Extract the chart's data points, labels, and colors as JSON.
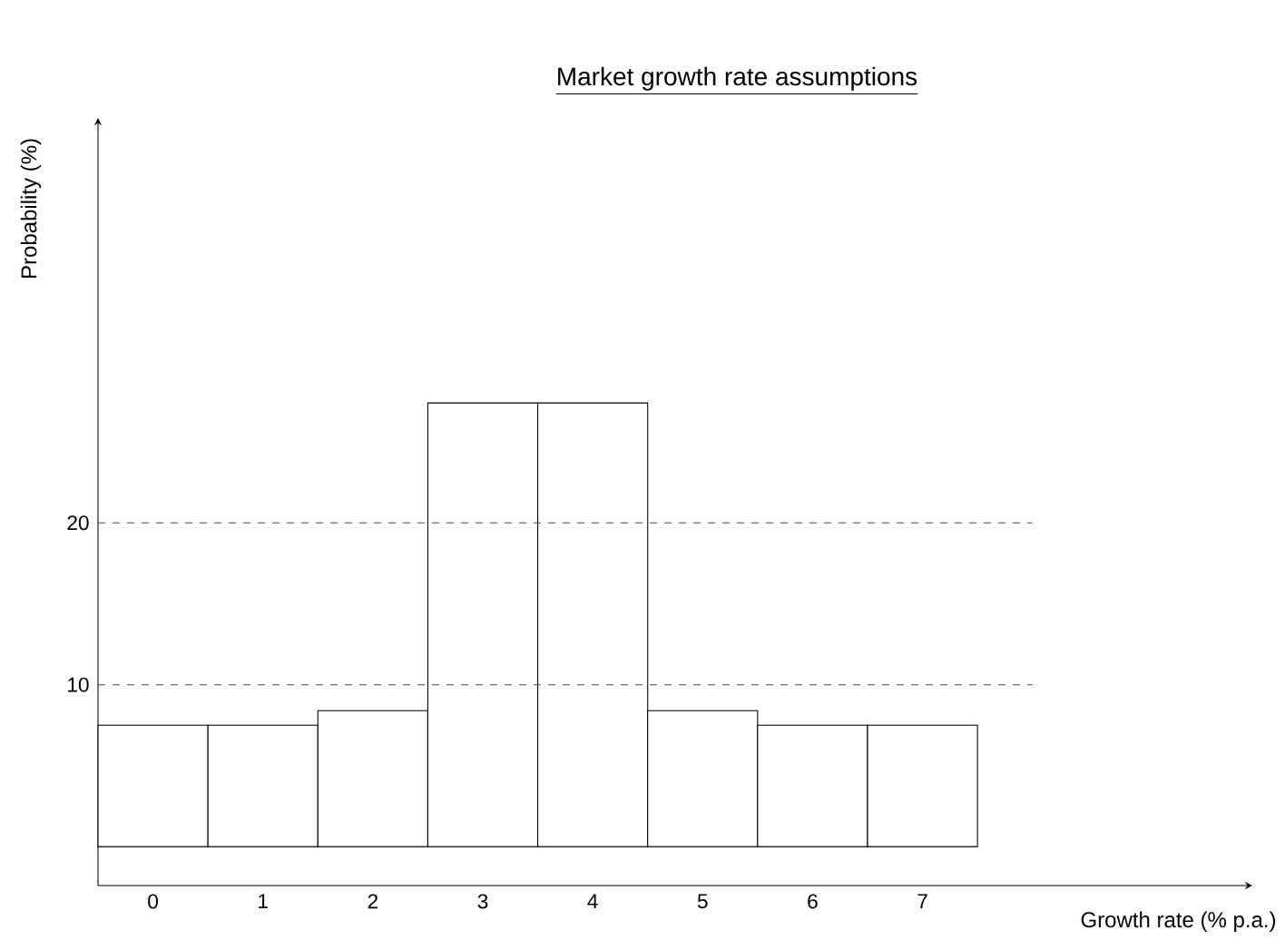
{
  "chart_data": {
    "type": "bar",
    "title": "Market growth rate assumptions",
    "xlabel": "Growth rate (% p.a.)",
    "ylabel": "Probability (%)",
    "categories": [
      "0",
      "1",
      "2",
      "3",
      "4",
      "5",
      "6",
      "7"
    ],
    "values": [
      7.5,
      7.5,
      8.4,
      27.4,
      27.4,
      8.4,
      7.5,
      7.5
    ],
    "color": "#ffffff",
    "ylim": [
      -2.4,
      45
    ],
    "yticks": [
      10,
      20
    ],
    "ref_lines": [
      {
        "axis": "y",
        "value": 10,
        "line_style": "dashed"
      },
      {
        "axis": "y",
        "value": 20,
        "line_style": "dashed"
      }
    ]
  }
}
